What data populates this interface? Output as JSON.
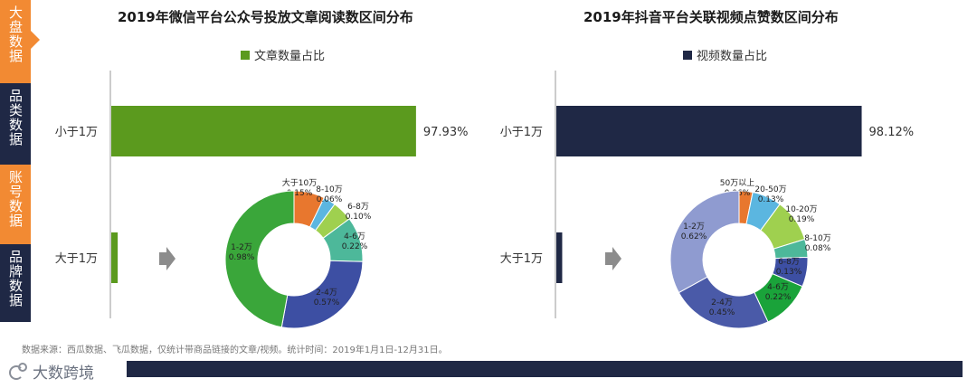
{
  "sidebar": {
    "tabs": [
      {
        "label": "大盘数据",
        "active": true,
        "color": "#f28a33"
      },
      {
        "label": "品类数据",
        "active": false,
        "color": "#1f2845"
      },
      {
        "label": "账号数据",
        "active": false,
        "color": "#f28a33"
      },
      {
        "label": "品牌数据",
        "active": false,
        "color": "#1f2845"
      }
    ]
  },
  "panels": [
    {
      "title": "2019年微信平台公众号投放文章阅读数区间分布",
      "legend": "文章数量占比",
      "color": "#5b9a1e"
    },
    {
      "title": "2019年抖音平台关联视频点赞数区间分布",
      "legend": "视频数量占比",
      "color": "#1f2845"
    }
  ],
  "chart_data": [
    {
      "type": "bar",
      "title": "2019年微信平台公众号投放文章阅读数区间分布",
      "orientation": "horizontal",
      "categories": [
        "小于1万",
        "大于1万"
      ],
      "series": [
        {
          "name": "文章数量占比",
          "values": [
            97.93,
            2.07
          ]
        }
      ],
      "data_labels": [
        "97.93%",
        ""
      ],
      "xlim": [
        0,
        100
      ],
      "color": "#5b9a1e",
      "grid": false,
      "legend_position": "top"
    },
    {
      "type": "pie",
      "donut": true,
      "slices": [
        {
          "label": "大于10万",
          "value": 0.15,
          "value_label": "0.15%",
          "color": "#e8772e"
        },
        {
          "label": "8-10万",
          "value": 0.06,
          "value_label": "0.06%",
          "color": "#5bb6e0"
        },
        {
          "label": "6-8万",
          "value": 0.1,
          "value_label": "0.10%",
          "color": "#9fd04f"
        },
        {
          "label": "4-6万",
          "value": 0.22,
          "value_label": "0.22%",
          "color": "#4db89a"
        },
        {
          "label": "2-4万",
          "value": 0.57,
          "value_label": "0.57%",
          "color": "#3d4fa3"
        },
        {
          "label": "1-2万",
          "value": 0.98,
          "value_label": "0.98%",
          "color": "#3aa63a"
        }
      ]
    },
    {
      "type": "bar",
      "title": "2019年抖音平台关联视频点赞数区间分布",
      "orientation": "horizontal",
      "categories": [
        "小于1万",
        "大于1万"
      ],
      "series": [
        {
          "name": "视频数量占比",
          "values": [
            98.12,
            1.88
          ]
        }
      ],
      "data_labels": [
        "98.12%",
        ""
      ],
      "xlim": [
        0,
        100
      ],
      "color": "#1f2845",
      "grid": false,
      "legend_position": "top"
    },
    {
      "type": "pie",
      "donut": true,
      "slices": [
        {
          "label": "50万以上",
          "value": 0.06,
          "value_label": "0.06%",
          "color": "#e8772e"
        },
        {
          "label": "20-50万",
          "value": 0.13,
          "value_label": "0.13%",
          "color": "#5bb6e0"
        },
        {
          "label": "10-20万",
          "value": 0.19,
          "value_label": "0.19%",
          "color": "#9fd04f"
        },
        {
          "label": "8-10万",
          "value": 0.08,
          "value_label": "0.08%",
          "color": "#4db89a"
        },
        {
          "label": "6-8万",
          "value": 0.13,
          "value_label": "0.13%",
          "color": "#3d4fa3"
        },
        {
          "label": "4-6万",
          "value": 0.22,
          "value_label": "0.22%",
          "color": "#1aa33a"
        },
        {
          "label": "2-4万",
          "value": 0.45,
          "value_label": "0.45%",
          "color": "#4a5aa8"
        },
        {
          "label": "1-2万",
          "value": 0.62,
          "value_label": "0.62%",
          "color": "#8f9bd0"
        }
      ]
    }
  ],
  "source": "数据来源：西瓜数据、飞瓜数据，仅统计带商品链接的文章/视频。统计时间：2019年1月1日-12月31日。",
  "brand": "大数跨境",
  "colors": {
    "orange": "#f28a33",
    "navy": "#1f2845",
    "arrow": "#8c8c8c",
    "axis": "#999999"
  }
}
